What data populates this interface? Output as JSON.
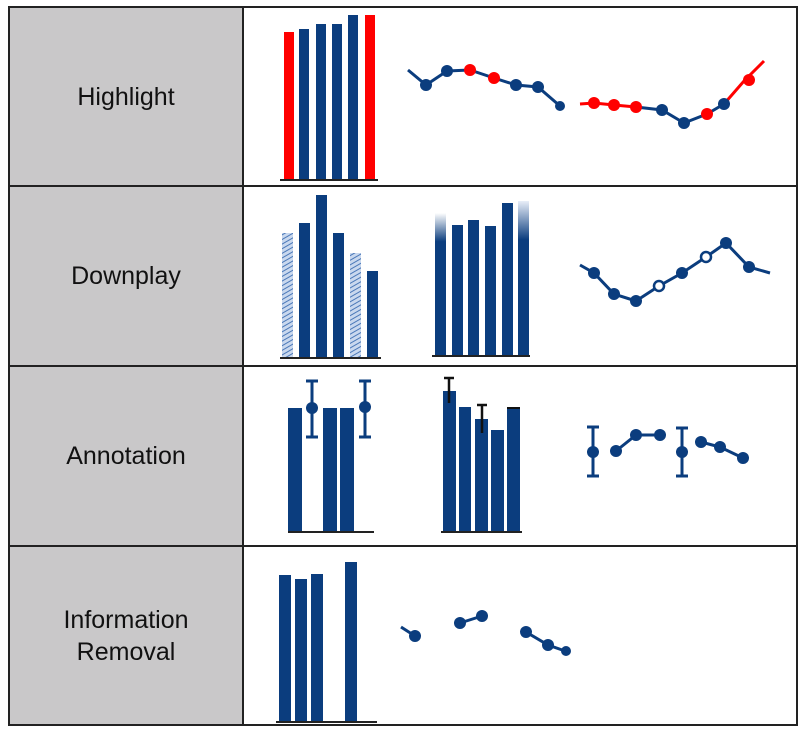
{
  "colors": {
    "blue": "#0b3d7e",
    "red": "#ff0000",
    "light_blue": "#5b86c4",
    "border": "#222222",
    "label_bg": "#c9c8c9"
  },
  "rows": [
    {
      "label": "Highlight"
    },
    {
      "label": "Downplay"
    },
    {
      "label": "Annotation"
    },
    {
      "label": "Information\nRemoval"
    }
  ]
}
